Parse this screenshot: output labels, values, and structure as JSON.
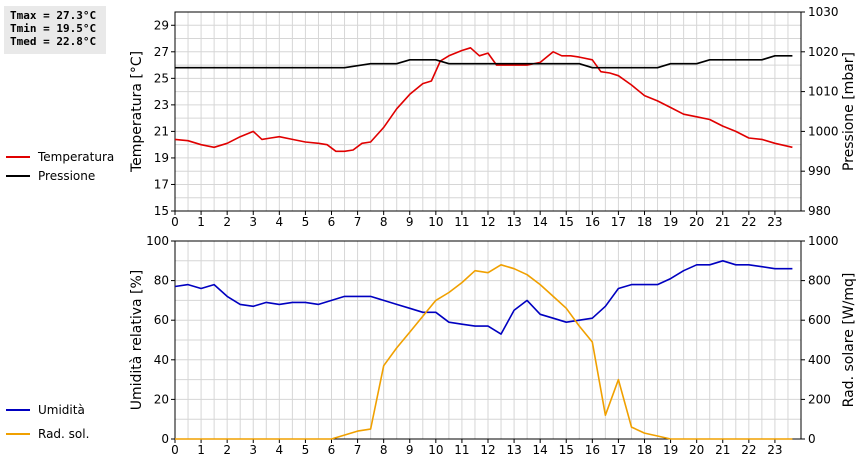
{
  "stats": {
    "tmax": "Tmax = 27.3°C",
    "tmin": "Tmin = 19.5°C",
    "tmed": "Tmed = 22.8°C"
  },
  "chart_data": [
    {
      "type": "line",
      "ylabel": "Temperatura [°C]",
      "y2label": "Pressione [mbar]",
      "xlim": [
        0,
        24
      ],
      "xticks": [
        0,
        1,
        2,
        3,
        4,
        5,
        6,
        7,
        8,
        9,
        10,
        11,
        12,
        13,
        14,
        15,
        16,
        17,
        18,
        19,
        20,
        21,
        22,
        23
      ],
      "ylim": [
        15,
        30
      ],
      "yticks": [
        15,
        17,
        19,
        21,
        23,
        25,
        27,
        29
      ],
      "y2lim": [
        980,
        1030
      ],
      "y2ticks": [
        980,
        990,
        1000,
        1010,
        1020,
        1030
      ],
      "grid": true,
      "legend_placement": "left",
      "series": [
        {
          "name": "Temperatura",
          "axis": "left",
          "color": "#e00000",
          "x": [
            0,
            0.5,
            1,
            1.5,
            2,
            2.5,
            3,
            3.33,
            3.67,
            4,
            4.5,
            5,
            5.5,
            5.83,
            6.17,
            6.5,
            6.83,
            7.17,
            7.5,
            8,
            8.5,
            9,
            9.5,
            9.83,
            10.17,
            10.5,
            11,
            11.33,
            11.67,
            12,
            12.33,
            12.67,
            13,
            13.5,
            14,
            14.5,
            14.83,
            15.17,
            15.5,
            16,
            16.33,
            16.67,
            17,
            17.5,
            18,
            18.5,
            19,
            19.5,
            20,
            20.5,
            21,
            21.5,
            22,
            22.5,
            23,
            23.67
          ],
          "y": [
            20.4,
            20.3,
            20.0,
            19.8,
            20.1,
            20.6,
            21.0,
            20.4,
            20.5,
            20.6,
            20.4,
            20.2,
            20.1,
            20.0,
            19.5,
            19.5,
            19.6,
            20.1,
            20.2,
            21.3,
            22.7,
            23.8,
            24.6,
            24.8,
            26.3,
            26.7,
            27.1,
            27.3,
            26.7,
            26.9,
            26.0,
            26.0,
            26.0,
            26.0,
            26.2,
            27.0,
            26.7,
            26.7,
            26.6,
            26.4,
            25.5,
            25.4,
            25.2,
            24.5,
            23.7,
            23.3,
            22.8,
            22.3,
            22.1,
            21.9,
            21.4,
            21.0,
            20.5,
            20.4,
            20.1,
            19.8
          ]
        },
        {
          "name": "Pressione",
          "axis": "right",
          "color": "#000000",
          "x": [
            0,
            6.5,
            7.5,
            8.5,
            9,
            10,
            10.5,
            11,
            15.5,
            16,
            18.5,
            19,
            20,
            20.5,
            22.5,
            23,
            23.67
          ],
          "y": [
            1016,
            1016,
            1017,
            1017,
            1018,
            1018,
            1017,
            1017,
            1017,
            1016,
            1016,
            1017,
            1017,
            1018,
            1018,
            1019,
            1019
          ]
        }
      ]
    },
    {
      "type": "line",
      "ylabel": "Umidità relativa [%]",
      "y2label": "Rad. solare [W/mq]",
      "xlim": [
        0,
        24
      ],
      "xticks": [
        0,
        1,
        2,
        3,
        4,
        5,
        6,
        7,
        8,
        9,
        10,
        11,
        12,
        13,
        14,
        15,
        16,
        17,
        18,
        19,
        20,
        21,
        22,
        23
      ],
      "ylim": [
        0,
        100
      ],
      "yticks": [
        0,
        20,
        40,
        60,
        80,
        100
      ],
      "y2lim": [
        0,
        1000
      ],
      "y2ticks": [
        0,
        200,
        400,
        600,
        800,
        1000
      ],
      "grid": true,
      "legend_placement": "left",
      "series": [
        {
          "name": "Umidità",
          "axis": "left",
          "color": "#0000c0",
          "x": [
            0,
            0.5,
            1,
            1.5,
            2,
            2.5,
            3,
            3.5,
            4,
            4.5,
            5,
            5.5,
            6,
            6.5,
            7,
            7.5,
            8,
            8.5,
            9,
            9.5,
            10,
            10.5,
            11,
            11.5,
            12,
            12.5,
            13,
            13.5,
            14,
            14.5,
            15,
            15.5,
            16,
            16.5,
            17,
            17.5,
            18,
            18.5,
            19,
            19.5,
            20,
            20.5,
            21,
            21.5,
            22,
            22.5,
            23,
            23.67
          ],
          "y": [
            77,
            78,
            76,
            78,
            72,
            68,
            67,
            69,
            68,
            69,
            69,
            68,
            70,
            72,
            72,
            72,
            70,
            68,
            66,
            64,
            64,
            59,
            58,
            57,
            57,
            53,
            65,
            70,
            63,
            61,
            59,
            60,
            61,
            67,
            76,
            78,
            78,
            78,
            81,
            85,
            88,
            88,
            90,
            88,
            88,
            87,
            86,
            86
          ]
        },
        {
          "name": "Rad. sol.",
          "axis": "right",
          "color": "#f0a000",
          "x": [
            0,
            6,
            7,
            7.5,
            8,
            8.5,
            9,
            9.5,
            10,
            10.5,
            11,
            11.5,
            12,
            12.5,
            13,
            13.5,
            14,
            14.5,
            15,
            15.5,
            16,
            16.5,
            17,
            17.5,
            18,
            18.5,
            19,
            19.5,
            20,
            21,
            22,
            23,
            23.67
          ],
          "y": [
            0,
            0,
            40,
            50,
            370,
            460,
            540,
            620,
            700,
            740,
            790,
            850,
            840,
            880,
            860,
            830,
            780,
            720,
            660,
            570,
            490,
            120,
            300,
            60,
            30,
            15,
            0,
            0,
            0,
            0,
            0,
            0,
            0
          ]
        }
      ]
    }
  ]
}
